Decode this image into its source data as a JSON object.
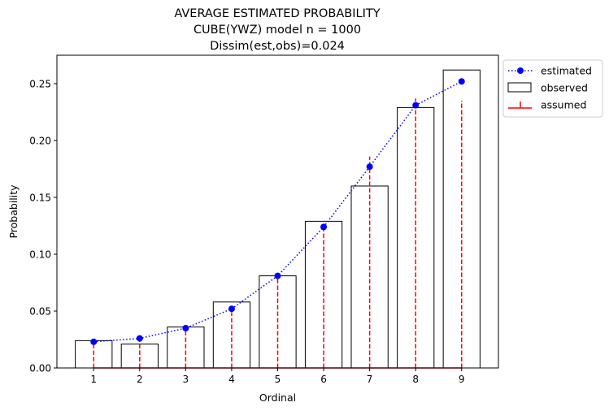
{
  "chart_data": {
    "type": "bar",
    "title_lines": [
      "AVERAGE ESTIMATED PROBABILITY",
      "CUBE(YWZ) model    n = 1000",
      "Dissim(est,obs)=0.024"
    ],
    "xlabel": "Ordinal",
    "ylabel": "Probability",
    "categories": [
      "1",
      "2",
      "3",
      "4",
      "5",
      "6",
      "7",
      "8",
      "9"
    ],
    "x": [
      1,
      2,
      3,
      4,
      5,
      6,
      7,
      8,
      9
    ],
    "xlim": [
      0.2,
      9.8
    ],
    "ylim": [
      0,
      0.275
    ],
    "yticks": [
      0.0,
      0.05,
      0.1,
      0.15,
      0.2,
      0.25
    ],
    "ytick_labels": [
      "0.00",
      "0.05",
      "0.10",
      "0.15",
      "0.20",
      "0.25"
    ],
    "legend_position": "outside-upper-right",
    "series": [
      {
        "name": "observed",
        "kind": "bar",
        "color": "#000000",
        "values": [
          0.024,
          0.021,
          0.036,
          0.058,
          0.081,
          0.129,
          0.16,
          0.229,
          0.262
        ]
      },
      {
        "name": "estimated",
        "kind": "line-dotted-markers",
        "color": "#0000ff",
        "values": [
          0.023,
          0.026,
          0.035,
          0.052,
          0.081,
          0.124,
          0.177,
          0.231,
          0.252
        ]
      },
      {
        "name": "assumed",
        "kind": "stem-dashed",
        "color": "#ff0000",
        "values": [
          0.022,
          0.025,
          0.033,
          0.049,
          0.08,
          0.126,
          0.186,
          0.237,
          0.235
        ]
      }
    ]
  }
}
